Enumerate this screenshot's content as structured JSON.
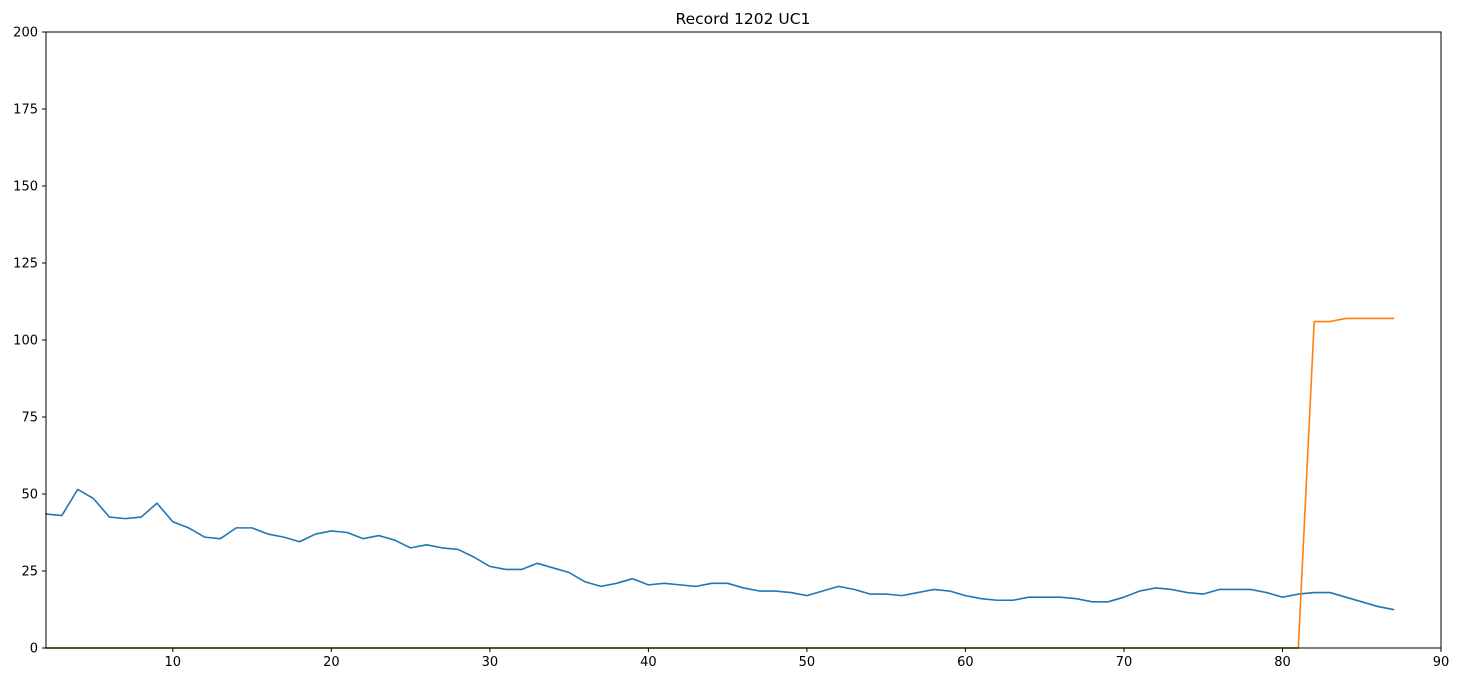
{
  "chart_data": {
    "type": "line",
    "title": "Record 1202 UC1",
    "xlabel": "",
    "ylabel": "",
    "xlim": [
      2,
      90
    ],
    "ylim": [
      0,
      200
    ],
    "xticks": [
      10,
      20,
      30,
      40,
      50,
      60,
      70,
      80,
      90
    ],
    "yticks": [
      0,
      25,
      50,
      75,
      100,
      125,
      150,
      175,
      200
    ],
    "grid": false,
    "legend": "none",
    "series": [
      {
        "color": "#1f77b4",
        "x": [
          2,
          3,
          4,
          5,
          6,
          7,
          8,
          9,
          10,
          11,
          12,
          13,
          14,
          15,
          16,
          17,
          18,
          19,
          20,
          21,
          22,
          23,
          24,
          25,
          26,
          27,
          28,
          29,
          30,
          31,
          32,
          33,
          34,
          35,
          36,
          37,
          38,
          39,
          40,
          41,
          42,
          43,
          44,
          45,
          46,
          47,
          48,
          49,
          50,
          51,
          52,
          53,
          54,
          55,
          56,
          57,
          58,
          59,
          60,
          61,
          62,
          63,
          64,
          65,
          66,
          67,
          68,
          69,
          70,
          71,
          72,
          73,
          74,
          75,
          76,
          77,
          78,
          79,
          80,
          81,
          82,
          83,
          84,
          85,
          86,
          87
        ],
        "y": [
          43.5,
          43,
          51.5,
          48.5,
          42.5,
          42,
          42.5,
          47,
          41,
          39,
          36,
          35.5,
          39,
          39,
          37,
          36,
          34.5,
          37,
          38,
          37.5,
          35.5,
          36.5,
          35,
          32.5,
          33.5,
          32.5,
          32,
          29.5,
          26.5,
          25.5,
          25.5,
          27.5,
          26,
          24.5,
          21.5,
          20,
          21,
          22.5,
          20.5,
          21,
          20.5,
          20,
          21,
          21,
          19.5,
          18.5,
          18.5,
          18,
          17,
          18.5,
          20,
          19,
          17.5,
          17.5,
          17,
          18,
          19,
          18.5,
          17,
          16,
          15.5,
          15.5,
          16.5,
          16.5,
          16.5,
          16,
          15,
          15,
          16.5,
          18.5,
          19.5,
          19,
          18,
          17.5,
          19,
          19,
          19,
          18,
          16.5,
          17.5,
          18,
          18,
          16.5,
          15,
          13.5,
          12.5
        ]
      },
      {
        "color": "#ff7f0e",
        "x": [
          2,
          81,
          82,
          83,
          84,
          85,
          86,
          87
        ],
        "y": [
          0,
          0,
          106,
          106,
          107,
          107,
          107,
          107
        ]
      },
      {
        "color": "#2ca02c",
        "x": [
          2,
          81
        ],
        "y": [
          0,
          0
        ]
      }
    ]
  }
}
